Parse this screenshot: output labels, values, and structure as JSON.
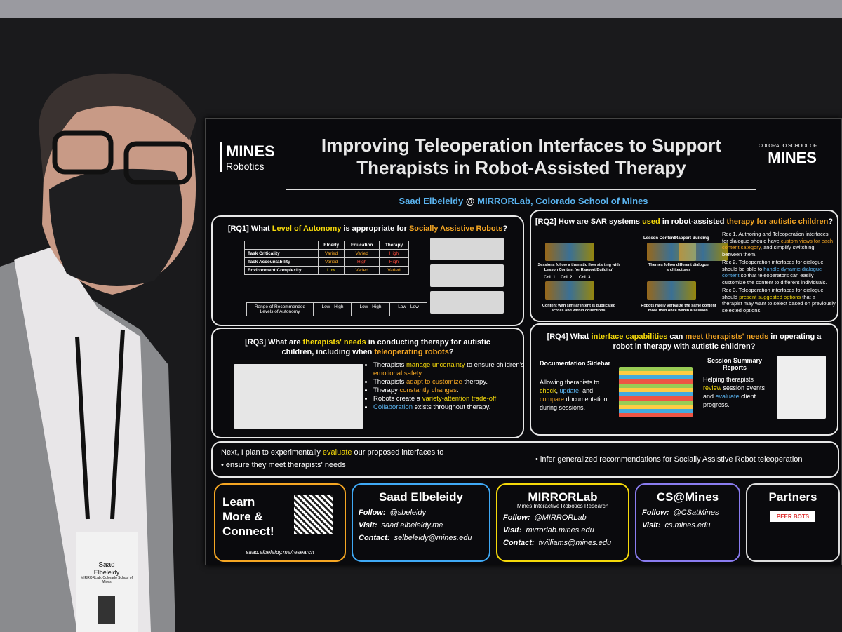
{
  "poster": {
    "logo_left": [
      "MINES",
      "Robotics"
    ],
    "title": [
      "Improving Teleoperation Interfaces to Support",
      "Therapists in Robot-Assisted Therapy"
    ],
    "logo_right": [
      "COLORADO SCHOOL OF",
      "MINES"
    ],
    "author": [
      {
        "text": "Saad Elbeleidy",
        "color": "#5ab4f0"
      },
      {
        "text": " @ "
      },
      {
        "text": "MIRRORLab, Colorado School of Mines",
        "color": "#5ab4f0"
      }
    ],
    "rq1": {
      "heading": [
        {
          "text": "[RQ1] What "
        },
        {
          "text": "Level of Autonomy",
          "color": "#f5d90a"
        },
        {
          "text": " is appropriate for "
        },
        {
          "text": "Socially Assistive Robots",
          "color": "#f5a623"
        },
        {
          "text": "?"
        }
      ],
      "columns": [
        "Elderly",
        "Education",
        "Therapy"
      ],
      "rows": [
        {
          "label": "Task Criticality",
          "cells": [
            {
              "text": "Varied",
              "color": "#f5a623"
            },
            {
              "text": "Varied",
              "color": "#f5a623"
            },
            {
              "text": "High",
              "color": "#ff4a3a"
            }
          ]
        },
        {
          "label": "Task Accountability",
          "cells": [
            {
              "text": "Varied",
              "color": "#f5a623"
            },
            {
              "text": "High",
              "color": "#ff4a3a"
            },
            {
              "text": "High",
              "color": "#ff4a3a"
            }
          ]
        },
        {
          "label": "Environment Complexity",
          "cells": [
            {
              "text": "Low",
              "color": "#f5d90a"
            },
            {
              "text": "Varied",
              "color": "#f5a623"
            },
            {
              "text": "Varied",
              "color": "#f5a623"
            }
          ]
        }
      ],
      "range_label": "Range of Recommended Levels of Autonomy",
      "ranges": [
        "Low - High",
        "Low - High",
        "Low - Low"
      ]
    },
    "rq2": {
      "heading": [
        {
          "text": "[RQ2] How are SAR systems "
        },
        {
          "text": "used",
          "color": "#f5d90a"
        },
        {
          "text": " in robot-assisted "
        },
        {
          "text": "therapy for autistic children",
          "color": "#f5a623"
        },
        {
          "text": "?"
        }
      ],
      "labels": [
        "Lesson Content",
        "Rapport Building",
        "Col. 1",
        "Col. 2",
        "Col. 3"
      ],
      "captions": [
        "Sessions follow a thematic flow starting with Lesson Content (or Rapport Building)",
        "Themes follow different dialogue architectures",
        "Content with similar intent is duplicated across and within collections.",
        "Robots rarely verbalize the same content more than once within a session."
      ],
      "recs": [
        [
          {
            "text": "Rec 1. Authoring and Teleoperation interfaces for dialogue should have "
          },
          {
            "text": "custom views for each content category",
            "color": "#f5a623"
          },
          {
            "text": ", and simplify switching between them."
          }
        ],
        [
          {
            "text": "Rec 2. Teleoperation interfaces for dialogue should be able to "
          },
          {
            "text": "handle dynamic dialogue content",
            "color": "#5ab4f0"
          },
          {
            "text": " so that teleoperators can easily customize the content to different individuals."
          }
        ],
        [
          {
            "text": "Rec 3. Teleoperation interfaces for dialogue should "
          },
          {
            "text": "present suggested options",
            "color": "#f5d90a"
          },
          {
            "text": " that a therapist may want to select based on previously selected options."
          }
        ]
      ]
    },
    "rq3": {
      "heading": [
        {
          "text": "[RQ3] What are "
        },
        {
          "text": "therapists' needs",
          "color": "#f5d90a"
        },
        {
          "text": " in conducting therapy for autistic children, including when "
        },
        {
          "text": "teleoperating robots",
          "color": "#f5a623"
        },
        {
          "text": "?"
        }
      ],
      "bullets": [
        [
          {
            "text": "Therapists "
          },
          {
            "text": "manage uncertainty",
            "color": "#f5d90a"
          },
          {
            "text": " to ensure children's "
          },
          {
            "text": "emotional safety",
            "color": "#f5a623"
          },
          {
            "text": "."
          }
        ],
        [
          {
            "text": "Therapists "
          },
          {
            "text": "adapt to customize",
            "color": "#f5a623"
          },
          {
            "text": " therapy."
          }
        ],
        [
          {
            "text": "Therapy "
          },
          {
            "text": "constantly changes",
            "color": "#f5a623"
          },
          {
            "text": "."
          }
        ],
        [
          {
            "text": "Robots create a "
          },
          {
            "text": "variety-attention trade-off",
            "color": "#f5d90a"
          },
          {
            "text": "."
          }
        ],
        [
          {
            "text": "Collaboration",
            "color": "#5ab4f0"
          },
          {
            "text": " exists throughout therapy."
          }
        ]
      ]
    },
    "rq4": {
      "heading": [
        {
          "text": "[RQ4] What "
        },
        {
          "text": "interface capabilities",
          "color": "#f5d90a"
        },
        {
          "text": " can "
        },
        {
          "text": "meet therapists' needs",
          "color": "#f5a623"
        },
        {
          "text": " in operating a robot in therapy with autistic children?"
        }
      ],
      "left_title": "Documentation Sidebar",
      "left_text": [
        {
          "text": "Allowing therapists to "
        },
        {
          "text": "check",
          "color": "#f5d90a"
        },
        {
          "text": ", "
        },
        {
          "text": "update",
          "color": "#5ab4f0"
        },
        {
          "text": ", and "
        },
        {
          "text": "compare",
          "color": "#f5a623"
        },
        {
          "text": " documentation during sessions."
        }
      ],
      "right_title": "Session Summary Reports",
      "right_text": [
        {
          "text": "Helping therapists "
        },
        {
          "text": "review",
          "color": "#f5d90a"
        },
        {
          "text": " session events and "
        },
        {
          "text": "evaluate",
          "color": "#5ab4f0"
        },
        {
          "text": " client progress."
        }
      ]
    },
    "next": {
      "lead": [
        {
          "text": "Next, I plan to experimentally "
        },
        {
          "text": "evaluate",
          "color": "#f5d90a"
        },
        {
          "text": " our proposed interfaces to"
        }
      ],
      "items": [
        "ensure they meet therapists' needs",
        "infer generalized recommendations for Socially Assistive Robot teleoperation"
      ]
    },
    "footer": {
      "learn": "Learn More & Connect!",
      "url": "saad.elbeleidy.me/research",
      "cards": [
        {
          "title": "Saad Elbeleidy",
          "color": "#3fa9f5",
          "lines": [
            [
              "Follow:",
              "@sbeleidy"
            ],
            [
              "Visit:",
              "saad.elbeleidy.me"
            ],
            [
              "Contact:",
              "selbeleidy@mines.edu"
            ]
          ]
        },
        {
          "title": "MIRRORLab",
          "subtitle": "Mines Interactive Robotics Research",
          "color": "#f5d90a",
          "lines": [
            [
              "Follow:",
              "@MIRRORLab"
            ],
            [
              "Visit:",
              "mirrorlab.mines.edu"
            ],
            [
              "Contact:",
              "twilliams@mines.edu"
            ]
          ]
        },
        {
          "title": "CS@Mines",
          "color": "#8a7cf0",
          "lines": [
            [
              "Follow:",
              "@CSatMines"
            ],
            [
              "Visit:",
              "cs.mines.edu"
            ]
          ]
        }
      ],
      "partners": "Partners",
      "partner_logo": "PEER BOTS"
    }
  },
  "badge": [
    "Saad",
    "Elbeleidy",
    "MIRRORLab, Colorado School of Mines"
  ]
}
